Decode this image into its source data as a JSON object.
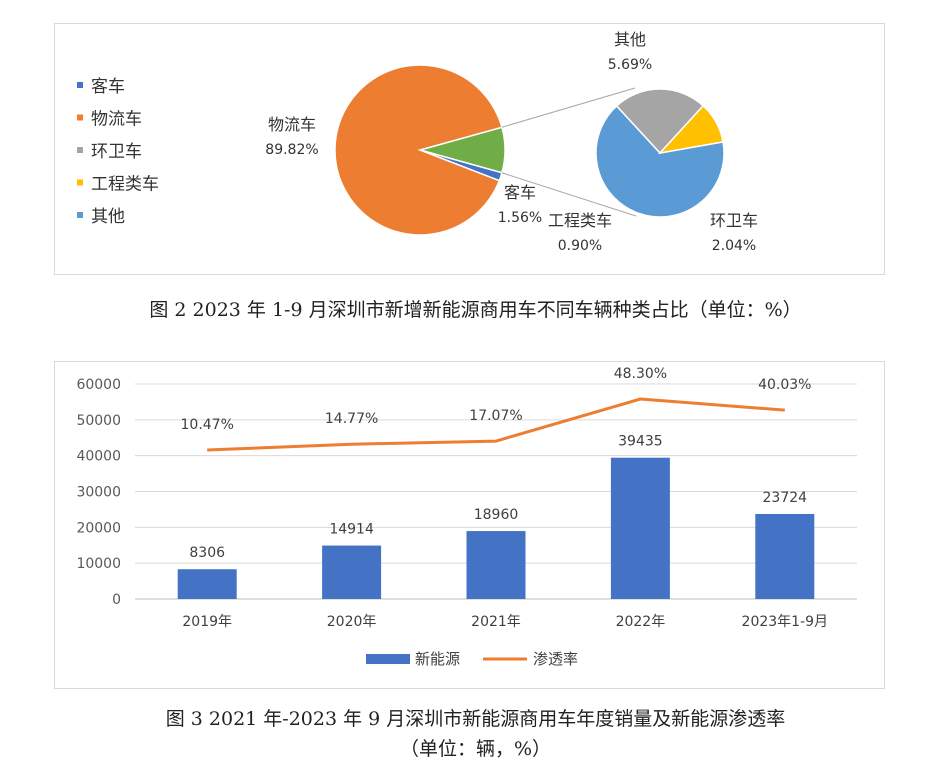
{
  "captions": {
    "fig2": "图 2 2023 年 1-9 月深圳市新增新能源商用车不同车辆种类占比（单位：%）",
    "fig3_line1": "图 3 2021 年-2023 年 9 月深圳市新能源商用车年度销量及新能源渗透率",
    "fig3_line2": "（单位：辆，%）"
  },
  "chart_data": [
    {
      "type": "pie",
      "subtype": "pie-of-pie",
      "title": "",
      "legend": "left",
      "slices": [
        {
          "name": "客车",
          "value": 1.56,
          "label": "1.56%",
          "color": "#4472C4"
        },
        {
          "name": "物流车",
          "value": 89.82,
          "label": "89.82%",
          "color": "#ED7D31"
        },
        {
          "name": "环卫车",
          "value": 2.04,
          "label": "2.04%",
          "color": "#A5A5A5"
        },
        {
          "name": "工程类车",
          "value": 0.9,
          "label": "0.90%",
          "color": "#FFC000"
        },
        {
          "name": "其他",
          "value": 5.69,
          "label": "5.69%",
          "color": "#5B9BD5"
        }
      ],
      "secondary_pie": [
        "其他",
        "环卫车",
        "工程类车"
      ],
      "main_other_color": "#70AD47"
    },
    {
      "type": "bar",
      "combo": "bar+line",
      "title": "",
      "categories": [
        "2019年",
        "2020年",
        "2021年",
        "2022年",
        "2023年1-9月"
      ],
      "series": [
        {
          "name": "新能源",
          "type": "bar",
          "values": [
            8306,
            14914,
            18960,
            39435,
            23724
          ],
          "labels": [
            "8306",
            "14914",
            "18960",
            "39435",
            "23724"
          ],
          "color": "#4472C4"
        },
        {
          "name": "渗透率",
          "type": "line",
          "values": [
            10.47,
            14.77,
            17.07,
            48.3,
            40.03
          ],
          "labels": [
            "10.47%",
            "14.77%",
            "17.07%",
            "48.30%",
            "40.03%"
          ],
          "color": "#ED7D31"
        }
      ],
      "ylim": [
        0,
        60000
      ],
      "yticks": [
        "0",
        "10000",
        "20000",
        "30000",
        "40000",
        "50000",
        "60000"
      ],
      "grid": true,
      "legend": "bottom"
    }
  ]
}
